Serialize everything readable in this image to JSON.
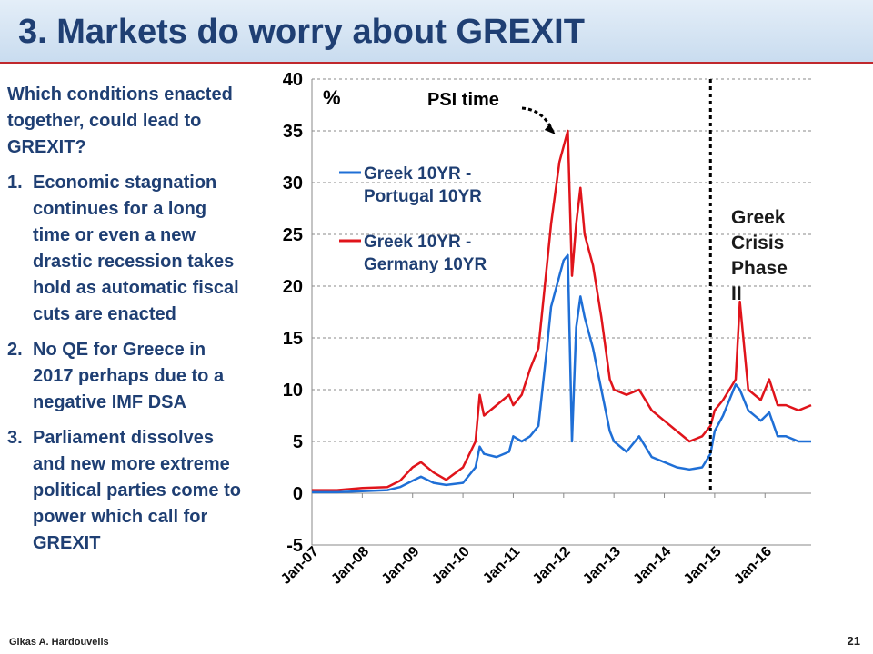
{
  "slide": {
    "title": "3.  Markets do worry about GREXIT",
    "intro": "Which conditions enacted together, could lead to  GREXIT?",
    "items": [
      {
        "num": "1.",
        "text": "Economic stagnation continues for a long time or even a new drastic recession takes hold as automatic fiscal cuts are enacted"
      },
      {
        "num": "2.",
        "text": "No QE for Greece in 2017 perhaps due to a negative IMF DSA"
      },
      {
        "num": "3.",
        "text": "Parliament dissolves and new more extreme political parties come to power which call for GREXIT"
      }
    ],
    "author": "Gikas A. Hardouvelis",
    "page": "21"
  },
  "chart_data": {
    "type": "line",
    "ylabel": "%",
    "ylim": [
      -5,
      40
    ],
    "yticks": [
      -5,
      0,
      5,
      10,
      15,
      20,
      25,
      30,
      35,
      40
    ],
    "xlim": [
      "2007-01",
      "2016-12"
    ],
    "xticks": [
      "Jan-07",
      "Jan-08",
      "Jan-09",
      "Jan-10",
      "Jan-11",
      "Jan-12",
      "Jan-13",
      "Jan-14",
      "Jan-15",
      "Jan-16"
    ],
    "grid": "horizontal dashed",
    "legend_position": "top-left",
    "series": [
      {
        "name": "Greek 10YR  - Portugal 10YR",
        "color": "#1f6fd6",
        "points": [
          [
            "2007-01",
            0.1
          ],
          [
            "2007-07",
            0.1
          ],
          [
            "2008-01",
            0.2
          ],
          [
            "2008-07",
            0.3
          ],
          [
            "2008-10",
            0.6
          ],
          [
            "2009-01",
            1.2
          ],
          [
            "2009-03",
            1.6
          ],
          [
            "2009-06",
            1.0
          ],
          [
            "2009-09",
            0.8
          ],
          [
            "2010-01",
            1.0
          ],
          [
            "2010-04",
            2.5
          ],
          [
            "2010-05",
            4.5
          ],
          [
            "2010-06",
            3.8
          ],
          [
            "2010-09",
            3.5
          ],
          [
            "2010-12",
            4.0
          ],
          [
            "2011-01",
            5.5
          ],
          [
            "2011-03",
            5.0
          ],
          [
            "2011-05",
            5.5
          ],
          [
            "2011-07",
            6.5
          ],
          [
            "2011-09",
            14.0
          ],
          [
            "2011-10",
            18.0
          ],
          [
            "2011-12",
            21.0
          ],
          [
            "2012-01",
            22.5
          ],
          [
            "2012-02",
            23.0
          ],
          [
            "2012-03",
            5.0
          ],
          [
            "2012-04",
            16.0
          ],
          [
            "2012-05",
            19.0
          ],
          [
            "2012-06",
            17.0
          ],
          [
            "2012-08",
            14.0
          ],
          [
            "2012-10",
            10.0
          ],
          [
            "2012-12",
            6.0
          ],
          [
            "2013-01",
            5.0
          ],
          [
            "2013-04",
            4.0
          ],
          [
            "2013-07",
            5.5
          ],
          [
            "2013-10",
            3.5
          ],
          [
            "2014-01",
            3.0
          ],
          [
            "2014-04",
            2.5
          ],
          [
            "2014-07",
            2.3
          ],
          [
            "2014-10",
            2.5
          ],
          [
            "2014-12",
            3.8
          ],
          [
            "2015-01",
            6.0
          ],
          [
            "2015-03",
            7.5
          ],
          [
            "2015-06",
            10.5
          ],
          [
            "2015-07",
            10.0
          ],
          [
            "2015-09",
            8.0
          ],
          [
            "2015-12",
            7.0
          ],
          [
            "2016-02",
            7.8
          ],
          [
            "2016-04",
            5.5
          ],
          [
            "2016-06",
            5.5
          ],
          [
            "2016-09",
            5.0
          ],
          [
            "2016-12",
            5.0
          ]
        ]
      },
      {
        "name": "Greek 10YR - Germany 10YR",
        "color": "#e0141b",
        "points": [
          [
            "2007-01",
            0.3
          ],
          [
            "2007-07",
            0.3
          ],
          [
            "2008-01",
            0.5
          ],
          [
            "2008-07",
            0.6
          ],
          [
            "2008-10",
            1.2
          ],
          [
            "2009-01",
            2.5
          ],
          [
            "2009-03",
            3.0
          ],
          [
            "2009-06",
            2.0
          ],
          [
            "2009-09",
            1.3
          ],
          [
            "2010-01",
            2.5
          ],
          [
            "2010-04",
            5.0
          ],
          [
            "2010-05",
            9.5
          ],
          [
            "2010-06",
            7.5
          ],
          [
            "2010-09",
            8.5
          ],
          [
            "2010-12",
            9.5
          ],
          [
            "2011-01",
            8.5
          ],
          [
            "2011-03",
            9.5
          ],
          [
            "2011-05",
            12.0
          ],
          [
            "2011-07",
            14.0
          ],
          [
            "2011-09",
            22.0
          ],
          [
            "2011-10",
            26.0
          ],
          [
            "2011-12",
            32.0
          ],
          [
            "2012-01",
            33.5
          ],
          [
            "2012-02",
            35.0
          ],
          [
            "2012-03",
            21.0
          ],
          [
            "2012-04",
            26.0
          ],
          [
            "2012-05",
            29.5
          ],
          [
            "2012-06",
            25.0
          ],
          [
            "2012-08",
            22.0
          ],
          [
            "2012-10",
            17.0
          ],
          [
            "2012-12",
            11.0
          ],
          [
            "2013-01",
            10.0
          ],
          [
            "2013-04",
            9.5
          ],
          [
            "2013-07",
            10.0
          ],
          [
            "2013-10",
            8.0
          ],
          [
            "2014-01",
            7.0
          ],
          [
            "2014-04",
            6.0
          ],
          [
            "2014-07",
            5.0
          ],
          [
            "2014-10",
            5.5
          ],
          [
            "2014-12",
            6.5
          ],
          [
            "2015-01",
            8.0
          ],
          [
            "2015-03",
            9.0
          ],
          [
            "2015-06",
            11.0
          ],
          [
            "2015-07",
            18.5
          ],
          [
            "2015-09",
            10.0
          ],
          [
            "2015-12",
            9.0
          ],
          [
            "2016-02",
            11.0
          ],
          [
            "2016-04",
            8.5
          ],
          [
            "2016-06",
            8.5
          ],
          [
            "2016-09",
            8.0
          ],
          [
            "2016-12",
            8.5
          ]
        ]
      }
    ],
    "annotations": [
      {
        "text": "PSI time",
        "arrow_to": [
          "2012-01",
          35
        ]
      },
      {
        "text": "Greek Crisis Phase II",
        "vline_at": "2014-12"
      }
    ]
  }
}
